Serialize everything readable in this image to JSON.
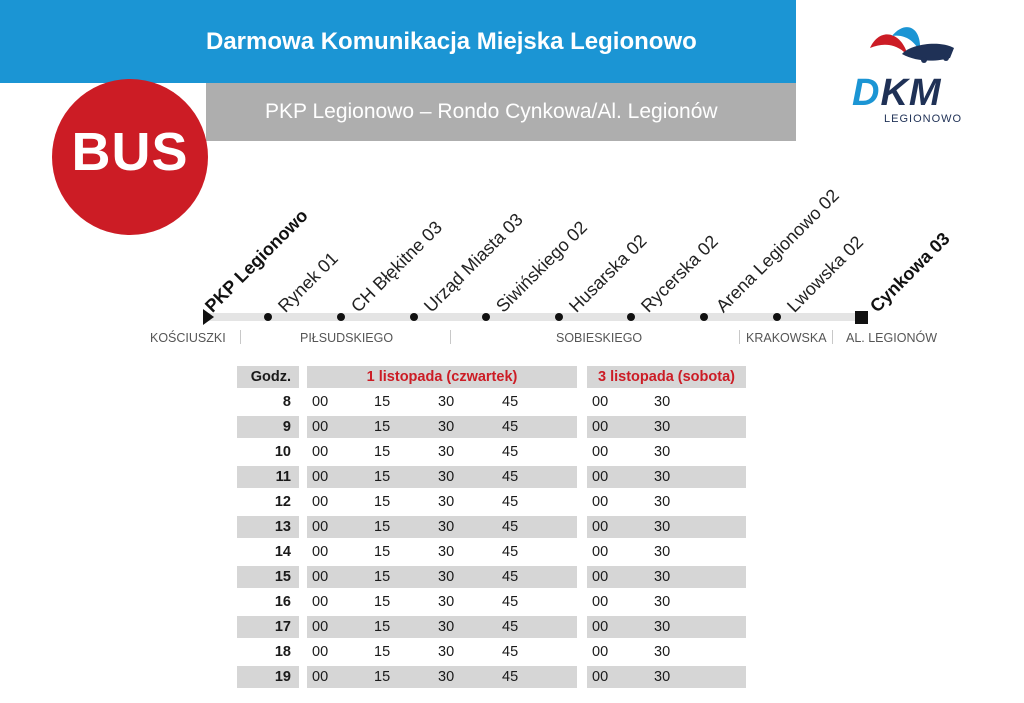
{
  "header": {
    "title": "Darmowa Komunikacja Miejska Legionowo",
    "subtitle": "PKP Legionowo – Rondo Cynkowa/Al. Legionów",
    "bus_badge": "BUS"
  },
  "logo": {
    "d": "D",
    "km": "KM",
    "sub": "LEGIONOWO",
    "colors": {
      "red": "#cc1c25",
      "blue": "#1b95d4",
      "navy": "#1f3156"
    }
  },
  "colors": {
    "header_blue": "#1b95d4",
    "header_gray": "#aeaeae",
    "bus_red": "#cc1c25",
    "row_gray": "#d6d6d6"
  },
  "stops": [
    {
      "name": "PKP Legionowo",
      "bold": true
    },
    {
      "name": "Rynek 01",
      "bold": false
    },
    {
      "name": "CH Błękitne 03",
      "bold": false
    },
    {
      "name": "Urząd Miasta 03",
      "bold": false
    },
    {
      "name": "Siwińskiego 02",
      "bold": false
    },
    {
      "name": "Husarska 02",
      "bold": false
    },
    {
      "name": "Rycerska 02",
      "bold": false
    },
    {
      "name": "Arena Legionowo 02",
      "bold": false
    },
    {
      "name": "Lwowska 02",
      "bold": false
    },
    {
      "name": "Cynkowa 03",
      "bold": true
    }
  ],
  "streets": [
    "KOŚCIUSZKI",
    "PIŁSUDSKIEGO",
    "SOBIESKIEGO",
    "KRAKOWSKA",
    "AL. LEGIONÓW"
  ],
  "timetable": {
    "hour_header": "Godz.",
    "day1_header": "1 listopada (czwartek)",
    "day2_header": "3 listopada (sobota)",
    "rows": [
      {
        "hour": "8",
        "day1": [
          "00",
          "15",
          "30",
          "45"
        ],
        "day2": [
          "00",
          "30"
        ]
      },
      {
        "hour": "9",
        "day1": [
          "00",
          "15",
          "30",
          "45"
        ],
        "day2": [
          "00",
          "30"
        ]
      },
      {
        "hour": "10",
        "day1": [
          "00",
          "15",
          "30",
          "45"
        ],
        "day2": [
          "00",
          "30"
        ]
      },
      {
        "hour": "11",
        "day1": [
          "00",
          "15",
          "30",
          "45"
        ],
        "day2": [
          "00",
          "30"
        ]
      },
      {
        "hour": "12",
        "day1": [
          "00",
          "15",
          "30",
          "45"
        ],
        "day2": [
          "00",
          "30"
        ]
      },
      {
        "hour": "13",
        "day1": [
          "00",
          "15",
          "30",
          "45"
        ],
        "day2": [
          "00",
          "30"
        ]
      },
      {
        "hour": "14",
        "day1": [
          "00",
          "15",
          "30",
          "45"
        ],
        "day2": [
          "00",
          "30"
        ]
      },
      {
        "hour": "15",
        "day1": [
          "00",
          "15",
          "30",
          "45"
        ],
        "day2": [
          "00",
          "30"
        ]
      },
      {
        "hour": "16",
        "day1": [
          "00",
          "15",
          "30",
          "45"
        ],
        "day2": [
          "00",
          "30"
        ]
      },
      {
        "hour": "17",
        "day1": [
          "00",
          "15",
          "30",
          "45"
        ],
        "day2": [
          "00",
          "30"
        ]
      },
      {
        "hour": "18",
        "day1": [
          "00",
          "15",
          "30",
          "45"
        ],
        "day2": [
          "00",
          "30"
        ]
      },
      {
        "hour": "19",
        "day1": [
          "00",
          "15",
          "30",
          "45"
        ],
        "day2": [
          "00",
          "30"
        ]
      }
    ]
  }
}
